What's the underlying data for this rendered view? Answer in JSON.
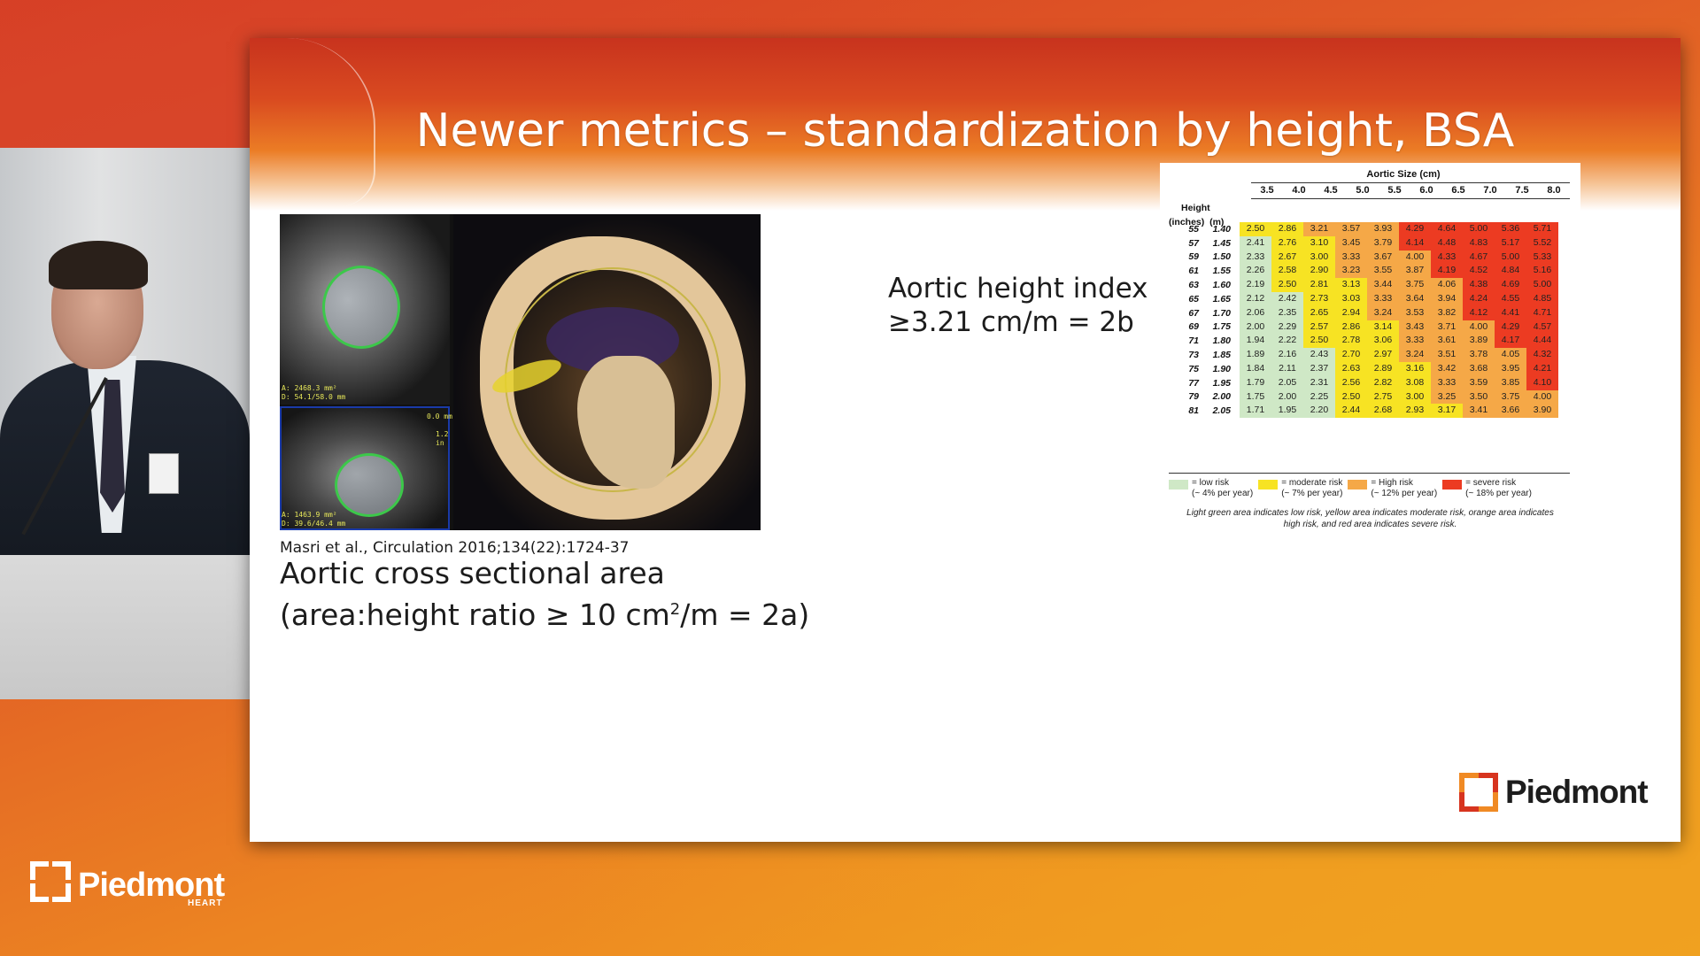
{
  "slide": {
    "title": "Newer metrics – standardization by height, BSA",
    "ct_labels": {
      "top": "A: 2468.3 mm²\nD: 54.1/58.0 mm",
      "bottom_right_a": "0.0 mm",
      "bottom_right_b": "1.2\nin",
      "bottom": "A: 1463.9 mm²\nD: 39.6/46.4 mm"
    },
    "citation": "Masri et al., Circulation 2016;134(22):1724-37",
    "area_line1": "Aortic cross sectional area",
    "area_line2_pre": "(area:height ratio ≥ 10 cm",
    "area_line2_sup": "2",
    "area_line2_post": "/m = 2a)",
    "ahi_line1": "Aortic height index",
    "ahi_line2": "≥3.21 cm/m = 2b"
  },
  "risk_table": {
    "title": "Aortic Size (cm)",
    "height_header_line1": "Height",
    "height_header_line2": "(inches)  (m)",
    "sizes": [
      "3.5",
      "4.0",
      "4.5",
      "5.0",
      "5.5",
      "6.0",
      "6.5",
      "7.0",
      "7.5",
      "8.0"
    ],
    "rows": [
      {
        "inches": "55",
        "m": "1.40",
        "values": [
          "2.50",
          "2.86",
          "3.21",
          "3.57",
          "3.93",
          "4.29",
          "4.64",
          "5.00",
          "5.36",
          "5.71"
        ],
        "risk": [
          "y",
          "y",
          "o",
          "o",
          "o",
          "r",
          "r",
          "r",
          "r",
          "r"
        ]
      },
      {
        "inches": "57",
        "m": "1.45",
        "values": [
          "2.41",
          "2.76",
          "3.10",
          "3.45",
          "3.79",
          "4.14",
          "4.48",
          "4.83",
          "5.17",
          "5.52"
        ],
        "risk": [
          "g",
          "y",
          "y",
          "o",
          "o",
          "r",
          "r",
          "r",
          "r",
          "r"
        ]
      },
      {
        "inches": "59",
        "m": "1.50",
        "values": [
          "2.33",
          "2.67",
          "3.00",
          "3.33",
          "3.67",
          "4.00",
          "4.33",
          "4.67",
          "5.00",
          "5.33"
        ],
        "risk": [
          "g",
          "y",
          "y",
          "o",
          "o",
          "o",
          "r",
          "r",
          "r",
          "r"
        ]
      },
      {
        "inches": "61",
        "m": "1.55",
        "values": [
          "2.26",
          "2.58",
          "2.90",
          "3.23",
          "3.55",
          "3.87",
          "4.19",
          "4.52",
          "4.84",
          "5.16"
        ],
        "risk": [
          "g",
          "y",
          "y",
          "o",
          "o",
          "o",
          "r",
          "r",
          "r",
          "r"
        ]
      },
      {
        "inches": "63",
        "m": "1.60",
        "values": [
          "2.19",
          "2.50",
          "2.81",
          "3.13",
          "3.44",
          "3.75",
          "4.06",
          "4.38",
          "4.69",
          "5.00"
        ],
        "risk": [
          "g",
          "y",
          "y",
          "y",
          "o",
          "o",
          "o",
          "r",
          "r",
          "r"
        ]
      },
      {
        "inches": "65",
        "m": "1.65",
        "values": [
          "2.12",
          "2.42",
          "2.73",
          "3.03",
          "3.33",
          "3.64",
          "3.94",
          "4.24",
          "4.55",
          "4.85"
        ],
        "risk": [
          "g",
          "g",
          "y",
          "y",
          "o",
          "o",
          "o",
          "r",
          "r",
          "r"
        ]
      },
      {
        "inches": "67",
        "m": "1.70",
        "values": [
          "2.06",
          "2.35",
          "2.65",
          "2.94",
          "3.24",
          "3.53",
          "3.82",
          "4.12",
          "4.41",
          "4.71"
        ],
        "risk": [
          "g",
          "g",
          "y",
          "y",
          "o",
          "o",
          "o",
          "r",
          "r",
          "r"
        ]
      },
      {
        "inches": "69",
        "m": "1.75",
        "values": [
          "2.00",
          "2.29",
          "2.57",
          "2.86",
          "3.14",
          "3.43",
          "3.71",
          "4.00",
          "4.29",
          "4.57"
        ],
        "risk": [
          "g",
          "g",
          "y",
          "y",
          "y",
          "o",
          "o",
          "o",
          "r",
          "r"
        ]
      },
      {
        "inches": "71",
        "m": "1.80",
        "values": [
          "1.94",
          "2.22",
          "2.50",
          "2.78",
          "3.06",
          "3.33",
          "3.61",
          "3.89",
          "4.17",
          "4.44"
        ],
        "risk": [
          "g",
          "g",
          "y",
          "y",
          "y",
          "o",
          "o",
          "o",
          "r",
          "r"
        ]
      },
      {
        "inches": "73",
        "m": "1.85",
        "values": [
          "1.89",
          "2.16",
          "2.43",
          "2.70",
          "2.97",
          "3.24",
          "3.51",
          "3.78",
          "4.05",
          "4.32"
        ],
        "risk": [
          "g",
          "g",
          "g",
          "y",
          "y",
          "o",
          "o",
          "o",
          "o",
          "r"
        ]
      },
      {
        "inches": "75",
        "m": "1.90",
        "values": [
          "1.84",
          "2.11",
          "2.37",
          "2.63",
          "2.89",
          "3.16",
          "3.42",
          "3.68",
          "3.95",
          "4.21"
        ],
        "risk": [
          "g",
          "g",
          "g",
          "y",
          "y",
          "y",
          "o",
          "o",
          "o",
          "r"
        ]
      },
      {
        "inches": "77",
        "m": "1.95",
        "values": [
          "1.79",
          "2.05",
          "2.31",
          "2.56",
          "2.82",
          "3.08",
          "3.33",
          "3.59",
          "3.85",
          "4.10"
        ],
        "risk": [
          "g",
          "g",
          "g",
          "y",
          "y",
          "y",
          "o",
          "o",
          "o",
          "r"
        ]
      },
      {
        "inches": "79",
        "m": "2.00",
        "values": [
          "1.75",
          "2.00",
          "2.25",
          "2.50",
          "2.75",
          "3.00",
          "3.25",
          "3.50",
          "3.75",
          "4.00"
        ],
        "risk": [
          "g",
          "g",
          "g",
          "y",
          "y",
          "y",
          "o",
          "o",
          "o",
          "o"
        ]
      },
      {
        "inches": "81",
        "m": "2.05",
        "values": [
          "1.71",
          "1.95",
          "2.20",
          "2.44",
          "2.68",
          "2.93",
          "3.17",
          "3.41",
          "3.66",
          "3.90"
        ],
        "risk": [
          "g",
          "g",
          "g",
          "y",
          "y",
          "y",
          "y",
          "o",
          "o",
          "o"
        ]
      }
    ],
    "legend": [
      {
        "key": "g",
        "line1": "= low risk",
        "line2": "(~ 4% per year)"
      },
      {
        "key": "y",
        "line1": "= moderate risk",
        "line2": "(~ 7% per year)"
      },
      {
        "key": "o",
        "line1": "= High risk",
        "line2": "(~ 12% per year)"
      },
      {
        "key": "r",
        "line1": "= severe risk",
        "line2": "(~ 18% per year)"
      }
    ],
    "caption_line1": "Light green area indicates low risk, yellow area indicates moderate risk, orange area indicates",
    "caption_line2": "high risk, and red area indicates severe risk."
  },
  "colors": {
    "low": "#cfe8c6",
    "moderate": "#f7e323",
    "high": "#f5a847",
    "severe": "#ec3b22",
    "logo_orange": "#f08a24",
    "logo_red": "#d7341f"
  },
  "logos": {
    "slide_logo": "Piedmont",
    "bottom_logo": "Piedmont",
    "bottom_logo_sub": "HEART"
  }
}
